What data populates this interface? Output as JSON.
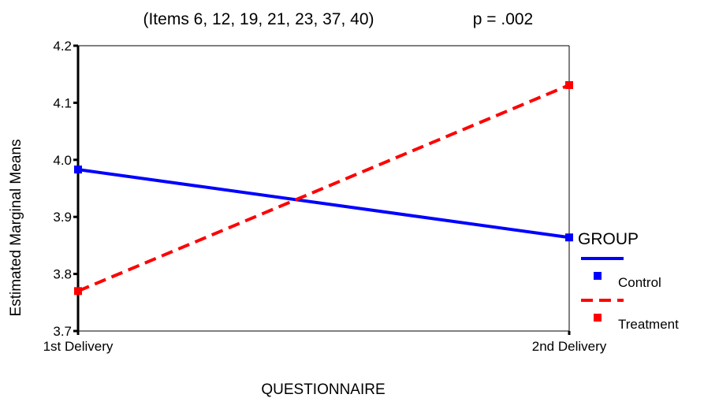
{
  "chart_data": {
    "type": "line",
    "title": "(Items 6, 12, 19, 21, 23, 37, 40)",
    "subtitle": "p = .002",
    "xlabel": "QUESTIONNAIRE",
    "ylabel": "Estimated Marginal Means",
    "categories": [
      "1st Delivery",
      "2nd Delivery"
    ],
    "ylim": [
      3.7,
      4.2
    ],
    "yticks": [
      "3.7",
      "3.8",
      "3.9",
      "4.0",
      "4.1",
      "4.2"
    ],
    "grid": false,
    "legend_position": "right",
    "legend_title": "GROUP",
    "series": [
      {
        "name": "Control",
        "values": [
          3.983,
          3.864
        ],
        "color": "#0000ff",
        "style": "solid"
      },
      {
        "name": "Treatment",
        "values": [
          3.77,
          4.131
        ],
        "color": "#ff0000",
        "style": "dashed"
      }
    ]
  }
}
